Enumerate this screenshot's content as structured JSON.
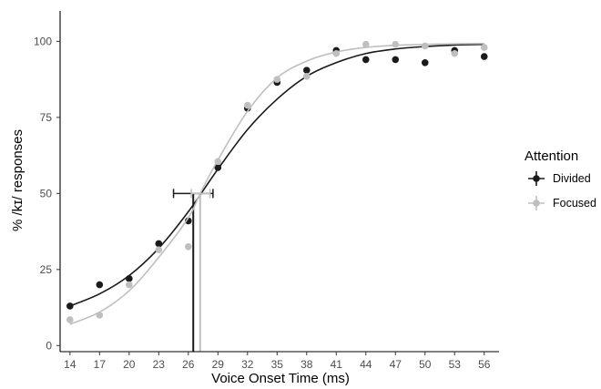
{
  "chart_data": {
    "type": "scatter",
    "title": "",
    "xlabel": "Voice Onset Time (ms)",
    "ylabel": "% /kɪ/ responses",
    "xlim": [
      13,
      57.5
    ],
    "ylim": [
      -2,
      110
    ],
    "x_ticks": [
      14,
      17,
      20,
      23,
      26,
      29,
      32,
      35,
      38,
      41,
      44,
      47,
      50,
      53,
      56
    ],
    "y_ticks": [
      0,
      25,
      50,
      75,
      100
    ],
    "grid": false,
    "legend": {
      "title": "Attention",
      "placement": "right"
    },
    "series": [
      {
        "name": "Divided",
        "color": "#1a1a1a",
        "points": [
          [
            14,
            13
          ],
          [
            17,
            20
          ],
          [
            20,
            22
          ],
          [
            23,
            33.5
          ],
          [
            26,
            41
          ],
          [
            29,
            58.5
          ],
          [
            32,
            78
          ],
          [
            35,
            86.5
          ],
          [
            38,
            90.5
          ],
          [
            41,
            97
          ],
          [
            44,
            94
          ],
          [
            47,
            94
          ],
          [
            50,
            93
          ],
          [
            53,
            97
          ],
          [
            56,
            95
          ]
        ],
        "fit_curve": [
          [
            14,
            13
          ],
          [
            17,
            17
          ],
          [
            20,
            23
          ],
          [
            23,
            32
          ],
          [
            26,
            44
          ],
          [
            29,
            58
          ],
          [
            32,
            71
          ],
          [
            35,
            81
          ],
          [
            38,
            88.5
          ],
          [
            41,
            93
          ],
          [
            44,
            96
          ],
          [
            47,
            97.5
          ],
          [
            50,
            98.3
          ],
          [
            53,
            98.8
          ],
          [
            56,
            99
          ]
        ],
        "category_boundary": 26.5,
        "boundary_error": [
          24.5,
          28.5
        ]
      },
      {
        "name": "Focused",
        "color": "#bfbfbf",
        "points": [
          [
            14,
            8.5
          ],
          [
            17,
            10
          ],
          [
            20,
            20
          ],
          [
            23,
            31.5
          ],
          [
            26,
            32.5
          ],
          [
            29,
            60.5
          ],
          [
            32,
            79
          ],
          [
            35,
            87.5
          ],
          [
            38,
            88.5
          ],
          [
            41,
            96
          ],
          [
            44,
            99
          ],
          [
            47,
            99
          ],
          [
            50,
            98.5
          ],
          [
            53,
            96
          ],
          [
            56,
            98
          ]
        ],
        "fit_curve": [
          [
            14,
            7
          ],
          [
            17,
            11
          ],
          [
            20,
            18
          ],
          [
            23,
            29
          ],
          [
            26,
            42
          ],
          [
            27.2,
            50
          ],
          [
            29,
            61
          ],
          [
            32,
            77
          ],
          [
            35,
            88
          ],
          [
            38,
            93.5
          ],
          [
            41,
            96.5
          ],
          [
            44,
            98
          ],
          [
            47,
            98.7
          ],
          [
            50,
            99
          ],
          [
            53,
            99.2
          ],
          [
            56,
            99.3
          ]
        ],
        "category_boundary": 27.2,
        "boundary_error": [
          26.3,
          28.2
        ]
      }
    ]
  }
}
